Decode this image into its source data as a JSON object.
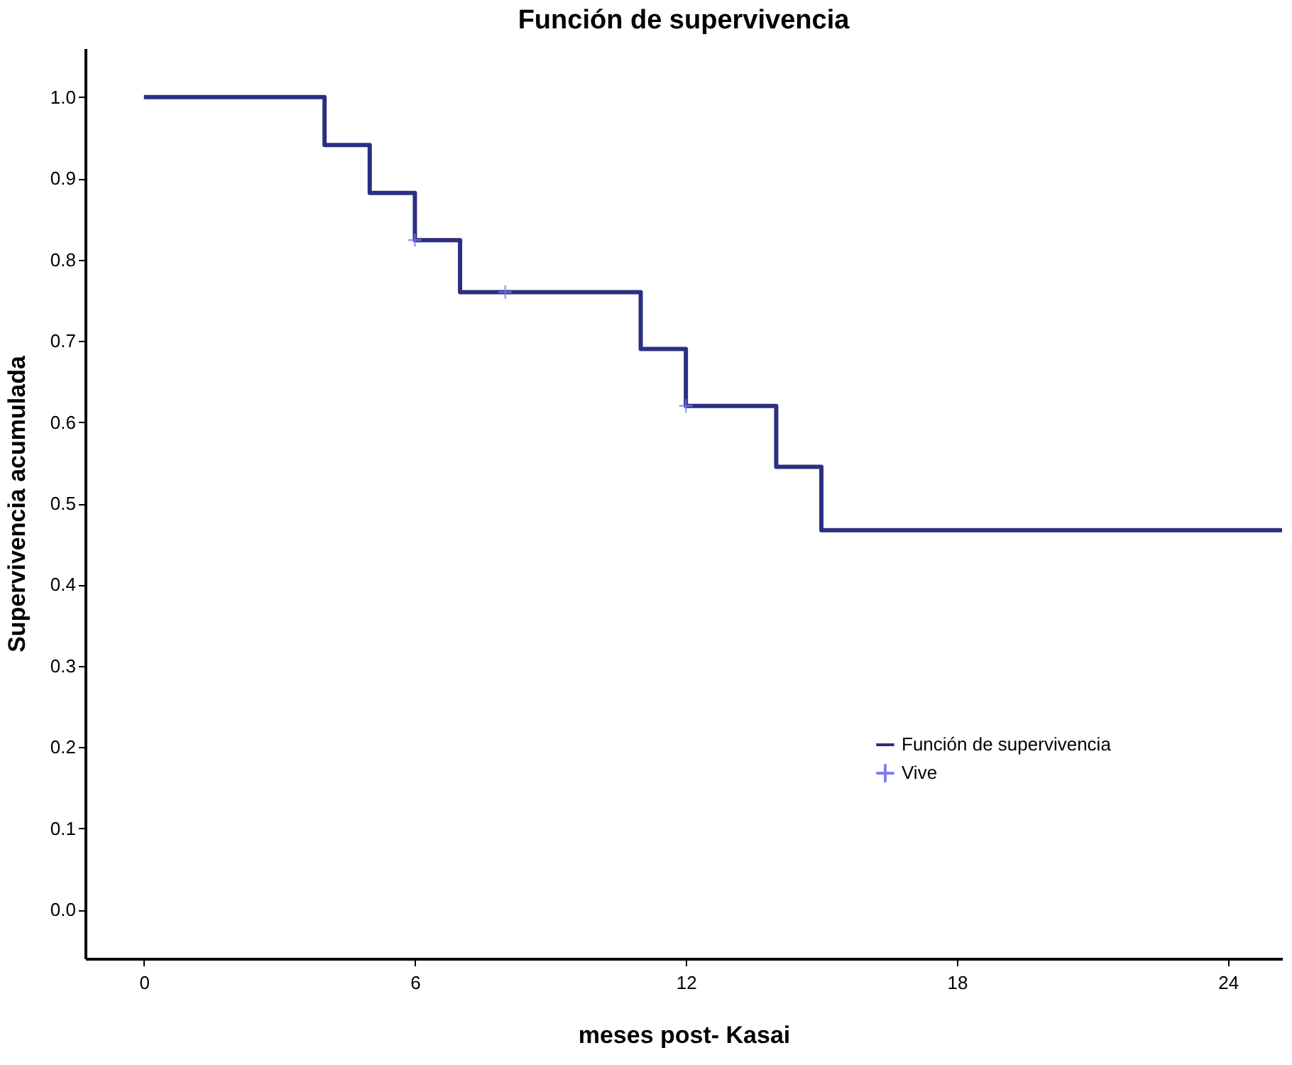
{
  "chart_data": {
    "type": "step",
    "title": "Función de supervivencia",
    "xlabel": "meses post- Kasai",
    "ylabel": "Supervivencia acumulada",
    "series": [
      {
        "name": "Función de supervivencia",
        "color": "#2b2f80",
        "x": [
          0,
          4,
          5,
          6,
          7,
          11,
          12,
          14,
          15,
          25.2
        ],
        "values": [
          1.0,
          0.941,
          0.882,
          0.824,
          0.76,
          0.69,
          0.62,
          0.545,
          0.467,
          0.467
        ]
      },
      {
        "name": "Vive",
        "type": "scatter",
        "marker": "cross",
        "color": "#7d7df5",
        "x": [
          6,
          8,
          12
        ],
        "values": [
          0.824,
          0.76,
          0.62
        ]
      }
    ],
    "xlim": [
      -1.3,
      25.2
    ],
    "xticks": [
      0,
      6,
      12,
      18,
      24
    ],
    "ylim": [
      -0.06,
      1.06
    ],
    "yticks": [
      {
        "value": 0,
        "label": "0.0"
      },
      {
        "value": 0.1,
        "label": "0.1"
      },
      {
        "value": 0.2,
        "label": "0.2"
      },
      {
        "value": 0.3,
        "label": "0.3"
      },
      {
        "value": 0.4,
        "label": "0.4"
      },
      {
        "value": 0.5,
        "label": "0.5"
      },
      {
        "value": 0.6,
        "label": "0.6"
      },
      {
        "value": 0.7,
        "label": "0.7"
      },
      {
        "value": 0.8,
        "label": "0.8"
      },
      {
        "value": 0.9,
        "label": "0.9"
      },
      {
        "value": 1.0,
        "label": "1.0"
      }
    ],
    "grid": false,
    "legend": "bottom right"
  }
}
